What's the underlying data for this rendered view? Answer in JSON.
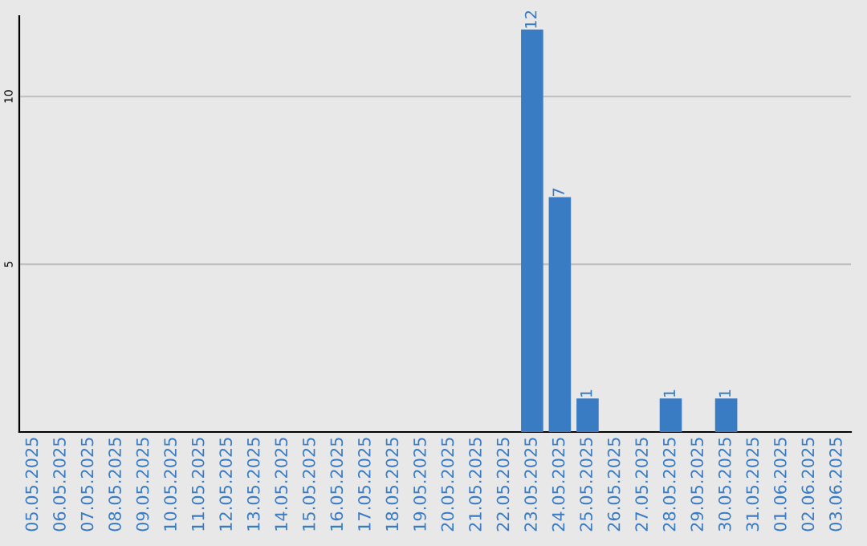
{
  "chart_data": {
    "type": "bar",
    "categories": [
      "05.05.2025",
      "06.05.2025",
      "07.05.2025",
      "08.05.2025",
      "09.05.2025",
      "10.05.2025",
      "11.05.2025",
      "12.05.2025",
      "13.05.2025",
      "14.05.2025",
      "15.05.2025",
      "16.05.2025",
      "17.05.2025",
      "18.05.2025",
      "19.05.2025",
      "20.05.2025",
      "21.05.2025",
      "22.05.2025",
      "23.05.2025",
      "24.05.2025",
      "25.05.2025",
      "26.05.2025",
      "27.05.2025",
      "28.05.2025",
      "29.05.2025",
      "30.05.2025",
      "31.05.2025",
      "01.06.2025",
      "02.06.2025",
      "03.06.2025"
    ],
    "values": [
      0,
      0,
      0,
      0,
      0,
      0,
      0,
      0,
      0,
      0,
      0,
      0,
      0,
      0,
      0,
      0,
      0,
      0,
      12,
      7,
      1,
      0,
      0,
      1,
      0,
      1,
      0,
      0,
      0,
      0
    ],
    "value_labels": [
      null,
      null,
      null,
      null,
      null,
      null,
      null,
      null,
      null,
      null,
      null,
      null,
      null,
      null,
      null,
      null,
      null,
      null,
      "12",
      "7",
      "1",
      null,
      null,
      "1",
      null,
      "1",
      null,
      null,
      null,
      null
    ],
    "color": "#3a7cc4",
    "ylim": [
      0,
      12.4
    ],
    "yticks": [
      5,
      10
    ],
    "grid": "y"
  }
}
